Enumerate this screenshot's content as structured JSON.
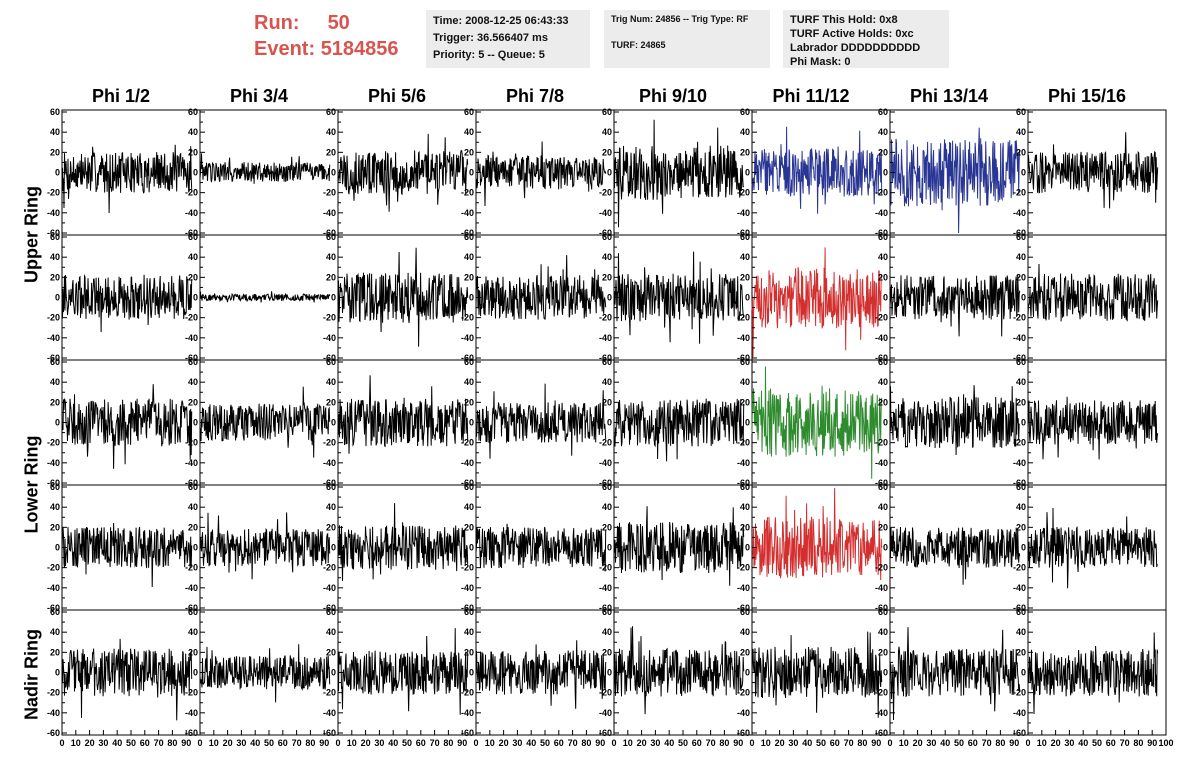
{
  "header": {
    "run_label": "Run:",
    "run_value": "50",
    "event_label": "Event:",
    "event_value": "5184856"
  },
  "info_time": {
    "time": "Time: 2008-12-25 06:43:33",
    "trigger": "Trigger: 36.566407 ms",
    "priority": "Priority: 5 -- Queue: 5"
  },
  "info_trig": {
    "trig": "Trig Num: 24856 -- Trig Type: RF",
    "turf": "TURF: 24865"
  },
  "info_turf": {
    "hold": "TURF This Hold: 0x8",
    "active": "TURF Active Holds: 0xc",
    "labrador": "Labrador DDDDDDDDDD",
    "phimask": "Phi Mask: 0"
  },
  "chart_data": {
    "type": "line",
    "columns": [
      "Phi 1/2",
      "Phi 3/4",
      "Phi 5/6",
      "Phi 7/8",
      "Phi 9/10",
      "Phi 11/12",
      "Phi 13/14",
      "Phi 15/16"
    ],
    "row_groups": [
      "Upper Ring",
      "Lower Ring",
      "Nadir Ring"
    ],
    "rows": 5,
    "xlim": [
      0,
      100
    ],
    "ylim": [
      -62,
      62
    ],
    "x_ticks": [
      0,
      10,
      20,
      30,
      40,
      50,
      60,
      70,
      80,
      90,
      100
    ],
    "x_tick_labels": [
      "0",
      "10",
      "20",
      "30",
      "40",
      "50",
      "60",
      "70",
      "80",
      "90",
      "100"
    ],
    "y_ticks": [
      -60,
      -40,
      -20,
      0,
      20,
      40,
      60
    ],
    "y_tick_labels": [
      "-60",
      "-40",
      "-20",
      "0",
      "20",
      "40",
      "60"
    ],
    "samples": 260,
    "amplitudes": [
      [
        12,
        6,
        13,
        10,
        16,
        14,
        20,
        12
      ],
      [
        13,
        2,
        15,
        13,
        14,
        18,
        13,
        14
      ],
      [
        14,
        11,
        14,
        12,
        14,
        20,
        15,
        13
      ],
      [
        12,
        11,
        13,
        12,
        15,
        18,
        12,
        12
      ],
      [
        14,
        10,
        13,
        13,
        14,
        15,
        14,
        14
      ]
    ],
    "highlights": [
      {
        "row": 0,
        "col": 5,
        "color": "#283593"
      },
      {
        "row": 0,
        "col": 6,
        "color": "#283593"
      },
      {
        "row": 1,
        "col": 5,
        "color": "#d32f2f"
      },
      {
        "row": 2,
        "col": 5,
        "color": "#2e8b2e"
      },
      {
        "row": 3,
        "col": 5,
        "color": "#d32f2f"
      }
    ],
    "default_color": "#000000"
  }
}
